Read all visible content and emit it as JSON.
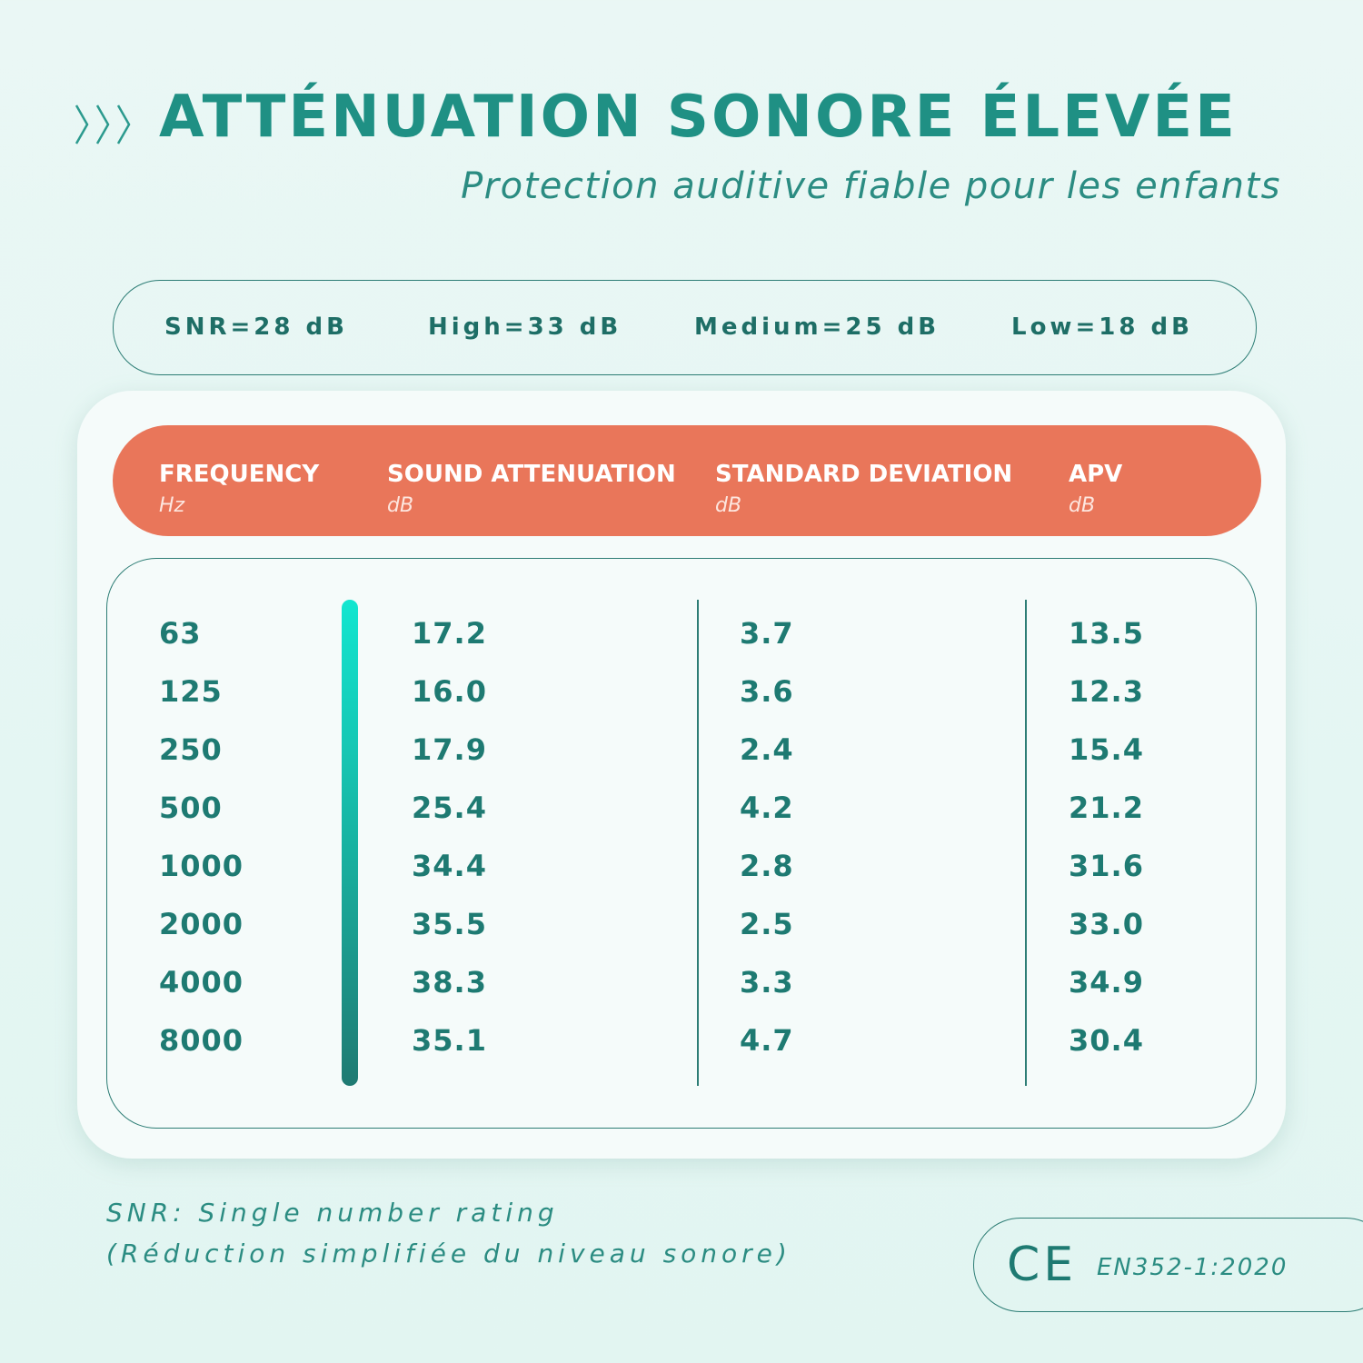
{
  "header": {
    "title": "ATTÉNUATION SONORE ÉLEVÉE",
    "subtitle": "Protection auditive fiable pour les enfants"
  },
  "ratings": [
    "SNR=28 dB",
    "High=33 dB",
    "Medium=25 dB",
    "Low=18 dB"
  ],
  "table": {
    "headers": [
      {
        "name": "FREQUENCY",
        "unit": "Hz"
      },
      {
        "name": "SOUND ATTENUATION",
        "unit": "dB"
      },
      {
        "name": "STANDARD DEVIATION",
        "unit": "dB"
      },
      {
        "name": "APV",
        "unit": "dB"
      }
    ],
    "rows": [
      [
        "63",
        "17.2",
        "3.7",
        "13.5"
      ],
      [
        "125",
        "16.0",
        "3.6",
        "12.3"
      ],
      [
        "250",
        "17.9",
        "2.4",
        "15.4"
      ],
      [
        "500",
        "25.4",
        "4.2",
        "21.2"
      ],
      [
        "1000",
        "34.4",
        "2.8",
        "31.6"
      ],
      [
        "2000",
        "35.5",
        "2.5",
        "33.0"
      ],
      [
        "4000",
        "38.3",
        "3.3",
        "34.9"
      ],
      [
        "8000",
        "35.1",
        "4.7",
        "30.4"
      ]
    ]
  },
  "footnote": [
    "SNR: Single number rating",
    "(Réduction simplifiée du niveau sonore)"
  ],
  "certification": {
    "mark": "CE",
    "standard": "EN352-1:2020"
  }
}
